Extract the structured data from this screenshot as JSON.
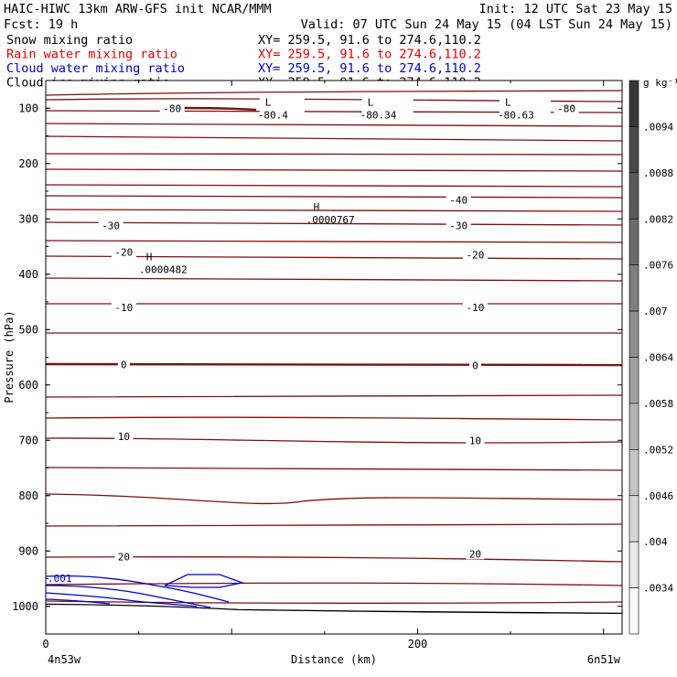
{
  "header": {
    "title_left": "HAIC-HIWC 13km ARW-GFS init   NCAR/MMM",
    "init": "Init: 12 UTC Sat 23 May 15",
    "fcst": "Fcst:   19 h",
    "valid": "Valid: 07 UTC Sun 24 May 15 (04 LST Sun 24 May 15)",
    "fields": [
      {
        "name": "Snow mixing ratio",
        "xy": "XY= 259.5, 91.6 to 274.6,110.2",
        "color": "#000000"
      },
      {
        "name": "Rain water mixing ratio",
        "xy": "XY= 259.5, 91.6 to 274.6,110.2",
        "color": "#e00000"
      },
      {
        "name": "Cloud water mixing ratio",
        "xy": "XY= 259.5, 91.6 to 274.6,110.2",
        "color": "#0000cc"
      },
      {
        "name": "Cloud ice mixing ratio",
        "xy": "XY= 259.5, 91.6 to 274.6,110.2",
        "color": "#000000"
      }
    ]
  },
  "chart_data": {
    "type": "contour cross-section",
    "ylabel": "Pressure (hPa)",
    "xlabel": "Distance (km)",
    "y_ticks": [
      100,
      200,
      300,
      400,
      500,
      600,
      700,
      800,
      900,
      1000
    ],
    "ylim": [
      50,
      1050
    ],
    "x_ticks": [
      0,
      200
    ],
    "xlim": [
      0,
      310
    ],
    "x_end_labels": {
      "left": "4n53w",
      "right": "6n51w"
    },
    "temperature_contours": {
      "color": "#7a1010",
      "labels": [
        {
          "text": "-80",
          "x": 68,
          "p": 100
        },
        {
          "text": "-80",
          "x": 280,
          "p": 100
        },
        {
          "text": "-40",
          "x": 222,
          "p": 266
        },
        {
          "text": "-30",
          "x": 35,
          "p": 312
        },
        {
          "text": "-30",
          "x": 222,
          "p": 312
        },
        {
          "text": "-20",
          "x": 42,
          "p": 360
        },
        {
          "text": "-20",
          "x": 231,
          "p": 365
        },
        {
          "text": "-10",
          "x": 42,
          "p": 460
        },
        {
          "text": "-10",
          "x": 231,
          "p": 460
        },
        {
          "text": "0",
          "x": 42,
          "p": 563
        },
        {
          "text": "0",
          "x": 231,
          "p": 565
        },
        {
          "text": "10",
          "x": 42,
          "p": 693
        },
        {
          "text": "10",
          "x": 231,
          "p": 700
        },
        {
          "text": "20",
          "x": 42,
          "p": 910
        },
        {
          "text": "20",
          "x": 231,
          "p": 905
        }
      ]
    },
    "extrema": [
      {
        "type": "L",
        "value": "-80.4",
        "x": 118,
        "p": 100
      },
      {
        "type": "L",
        "value": "-80.34",
        "x": 173,
        "p": 100
      },
      {
        "type": "L",
        "value": "-80.63",
        "x": 247,
        "p": 100
      },
      {
        "type": "H",
        "value": ".0000767",
        "x": 144,
        "p": 290
      },
      {
        "type": "H",
        "value": ".0000482",
        "x": 54,
        "p": 380
      }
    ],
    "cloud_water_contour": {
      "text": ".001",
      "color": "#0000cc"
    },
    "colorbar": {
      "unit": "g kg⁻¹",
      "labels": [
        ".0094",
        ".0088",
        ".0082",
        ".0076",
        ".007",
        ".0064",
        ".0058",
        ".0052",
        ".0046",
        ".004",
        ".0034"
      ]
    }
  }
}
